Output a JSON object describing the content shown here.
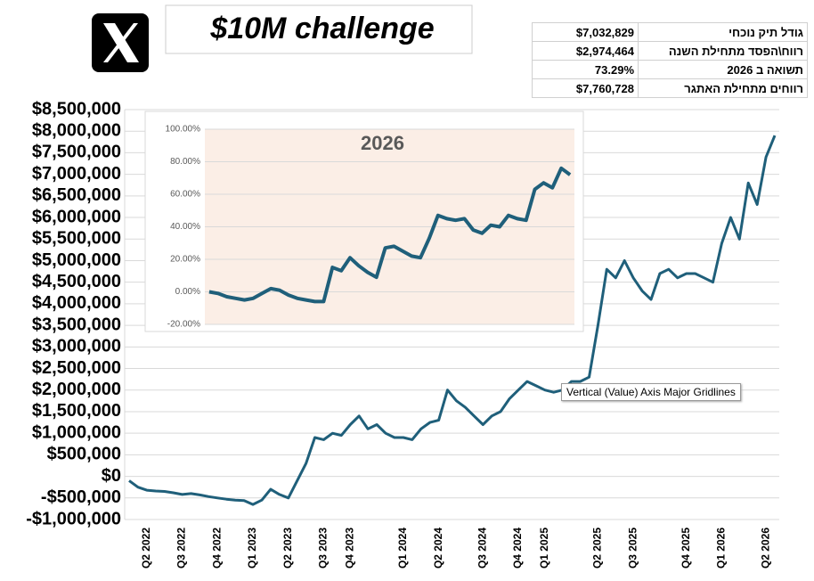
{
  "header": {
    "title": "$10M challenge"
  },
  "stats": {
    "rows": [
      [
        "$7,032,829",
        "גודל תיק נוכחי"
      ],
      [
        "$2,974,464",
        "רווח\\הפסד מתחילת השנה"
      ],
      [
        "73.29%",
        "תשואה ב 2026"
      ],
      [
        "$7,760,728",
        "רווחים מתחילת האתגר"
      ]
    ]
  },
  "tooltip": "Vertical (Value) Axis Major Gridlines",
  "chart_data": [
    {
      "type": "line",
      "color": "#1f5f7a",
      "grid": true,
      "categories": [
        null,
        null,
        "Q2 2022",
        null,
        null,
        null,
        "Q3 2022",
        null,
        null,
        null,
        "Q4 2022",
        null,
        null,
        null,
        "Q1 2023",
        null,
        null,
        null,
        "Q2 2023",
        null,
        null,
        null,
        "Q3 2023",
        null,
        null,
        "Q4 2023",
        null,
        null,
        null,
        null,
        null,
        "Q1 2024",
        null,
        null,
        null,
        "Q2 2024",
        null,
        null,
        null,
        null,
        "Q3 2024",
        null,
        null,
        null,
        "Q4 2024",
        null,
        null,
        "Q1 2025",
        null,
        null,
        null,
        null,
        null,
        "Q2 2025",
        null,
        null,
        null,
        "Q3 2025",
        null,
        null,
        null,
        null,
        null,
        "Q4 2025",
        null,
        null,
        null,
        "Q1 2026",
        null,
        null,
        null,
        null,
        "Q2 2026",
        null
      ],
      "values": [
        -100000,
        -250000,
        -320000,
        -340000,
        -350000,
        -380000,
        -420000,
        -400000,
        -430000,
        -470000,
        -500000,
        -530000,
        -550000,
        -560000,
        -650000,
        -550000,
        -300000,
        -420000,
        -500000,
        -100000,
        300000,
        900000,
        850000,
        1000000,
        950000,
        1200000,
        1400000,
        1100000,
        1200000,
        1000000,
        900000,
        900000,
        850000,
        1100000,
        1250000,
        1300000,
        2000000,
        1750000,
        1600000,
        1400000,
        1200000,
        1400000,
        1500000,
        1800000,
        2000000,
        2200000,
        2100000,
        2000000,
        1950000,
        2000000,
        2200000,
        2200000,
        2300000,
        3500000,
        4800000,
        4600000,
        5000000,
        4600000,
        4300000,
        4100000,
        4700000,
        4800000,
        4600000,
        4700000,
        4700000,
        4600000,
        4500000,
        5400000,
        6000000,
        5500000,
        6800000,
        6300000,
        7400000,
        7900000
      ],
      "ylim": [
        -1000000,
        8500000
      ],
      "yticks": [
        {
          "value": -1000000,
          "label": "-$1,000,000"
        },
        {
          "value": -500000,
          "label": "-$500,000"
        },
        {
          "value": 0,
          "label": "$0"
        },
        {
          "value": 500000,
          "label": "$500,000"
        },
        {
          "value": 1000000,
          "label": "$1,000,000"
        },
        {
          "value": 1500000,
          "label": "$1,500,000"
        },
        {
          "value": 2000000,
          "label": "$2,000,000"
        },
        {
          "value": 2500000,
          "label": "$2,500,000"
        },
        {
          "value": 3000000,
          "label": "$3,000,000"
        },
        {
          "value": 3500000,
          "label": "$3,500,000"
        },
        {
          "value": 4000000,
          "label": "$4,000,000"
        },
        {
          "value": 4500000,
          "label": "$4,500,000"
        },
        {
          "value": 5000000,
          "label": "$5,000,000"
        },
        {
          "value": 5500000,
          "label": "$5,500,000"
        },
        {
          "value": 6000000,
          "label": "$6,000,000"
        },
        {
          "value": 6500000,
          "label": "$6,500,000"
        },
        {
          "value": 7000000,
          "label": "$7,000,000"
        },
        {
          "value": 7500000,
          "label": "$7,500,000"
        },
        {
          "value": 8000000,
          "label": "$8,000,000"
        },
        {
          "value": 8500000,
          "label": "$8,500,000"
        }
      ]
    },
    {
      "type": "line",
      "title": "2026",
      "color": "#1f5f7a",
      "grid": true,
      "values": [
        0,
        -1,
        -3,
        -4,
        -5,
        -4,
        -1,
        2,
        1,
        -2,
        -4,
        -5,
        -6,
        -6,
        15,
        13,
        21,
        16,
        12,
        9,
        27,
        28,
        25,
        22,
        21,
        33,
        47,
        45,
        44,
        45,
        38,
        36,
        41,
        40,
        47,
        45,
        44,
        63,
        67,
        64,
        76,
        72
      ],
      "ylim": [
        -20,
        100
      ],
      "yticks": [
        {
          "value": -20,
          "label": "-20.00%"
        },
        {
          "value": 0,
          "label": "0.00%"
        },
        {
          "value": 20,
          "label": "20.00%"
        },
        {
          "value": 40,
          "label": "40.00%"
        },
        {
          "value": 60,
          "label": "60.00%"
        },
        {
          "value": 80,
          "label": "80.00%"
        },
        {
          "value": 100,
          "label": "100.00%"
        }
      ]
    }
  ]
}
